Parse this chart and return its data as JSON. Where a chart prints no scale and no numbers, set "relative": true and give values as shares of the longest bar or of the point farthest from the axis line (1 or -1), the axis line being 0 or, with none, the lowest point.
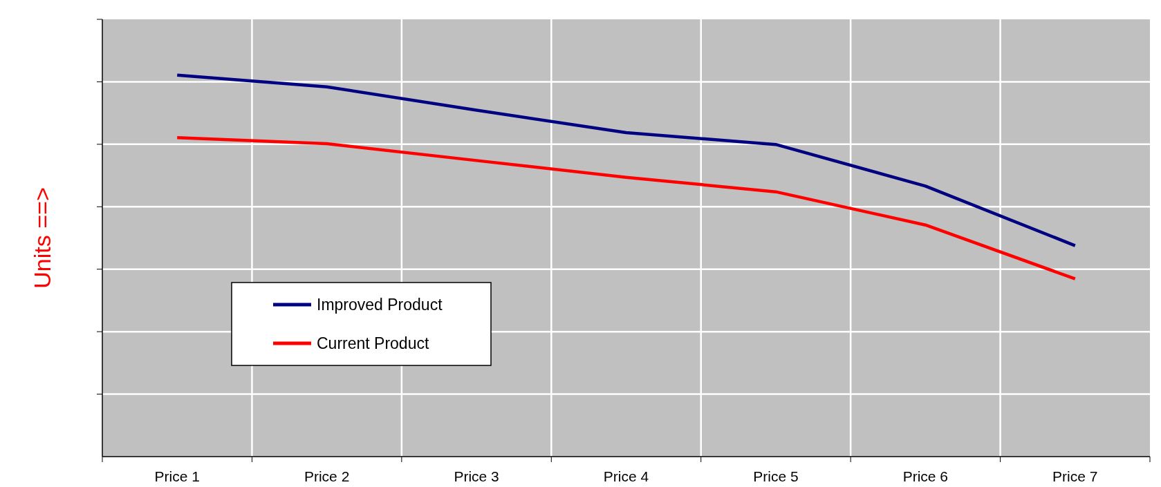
{
  "chart_data": {
    "type": "line",
    "relative": true,
    "ylabel": "Units ==>",
    "categories": [
      "Price 1",
      "Price 2",
      "Price 3",
      "Price 4",
      "Price 5",
      "Price 6",
      "Price 7"
    ],
    "series": [
      {
        "name": "Improved Product",
        "color": "#000080",
        "values": [
          1,
          0.969,
          0.908,
          0.849,
          0.818,
          0.709,
          0.553
        ]
      },
      {
        "name": "Current Product",
        "color": "#ff0000",
        "values": [
          0.836,
          0.82,
          0.776,
          0.732,
          0.694,
          0.607,
          0.466
        ]
      }
    ],
    "grid": true,
    "legend": "bottom left",
    "marker": "none"
  }
}
